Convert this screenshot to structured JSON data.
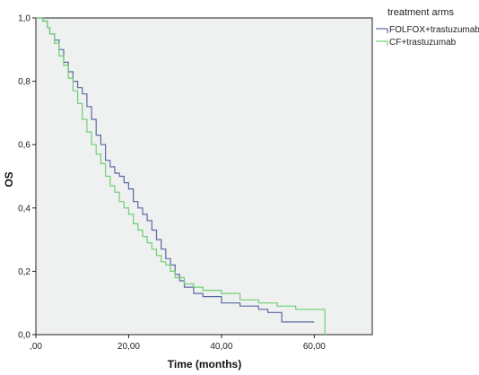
{
  "chart_data": {
    "type": "line",
    "step": true,
    "xlabel": "Time (months)",
    "ylabel": "OS",
    "xlim": [
      0,
      72.5
    ],
    "ylim": [
      0,
      1.0
    ],
    "x_ticks": [
      0,
      20,
      40,
      60
    ],
    "x_tick_labels": [
      ",00",
      "20,00",
      "40,00",
      "60,00"
    ],
    "y_ticks": [
      0,
      0.2,
      0.4,
      0.6,
      0.8,
      1.0
    ],
    "y_tick_labels": [
      "0,0",
      "0,2",
      "0,4",
      "0,6",
      "0,8",
      "1,0"
    ],
    "grid": false,
    "legend": {
      "title": "treatment arms",
      "placement": "outside-top-right"
    },
    "series": [
      {
        "name": "FOLFOX+trastuzumab",
        "color": "#5a6aa0",
        "x": [
          0,
          1.5,
          2.5,
          3,
          4,
          5,
          6,
          7,
          8,
          9,
          10,
          11,
          12,
          13,
          14,
          15,
          16,
          17,
          18,
          19,
          20,
          21,
          22,
          23,
          24,
          25,
          26,
          27,
          28,
          29,
          30,
          31,
          32,
          34,
          36,
          40,
          44,
          48,
          50,
          53,
          55,
          58,
          60
        ],
        "y": [
          1.0,
          0.99,
          0.97,
          0.95,
          0.93,
          0.9,
          0.86,
          0.83,
          0.8,
          0.78,
          0.76,
          0.72,
          0.68,
          0.63,
          0.6,
          0.55,
          0.53,
          0.51,
          0.5,
          0.48,
          0.46,
          0.42,
          0.4,
          0.38,
          0.36,
          0.33,
          0.3,
          0.27,
          0.24,
          0.22,
          0.19,
          0.17,
          0.15,
          0.13,
          0.12,
          0.1,
          0.09,
          0.08,
          0.07,
          0.04,
          0.04,
          0.04,
          0.04
        ]
      },
      {
        "name": "CF+trastuzumab",
        "color": "#6fcf73",
        "x": [
          0,
          1.5,
          2.5,
          3,
          4,
          5,
          6,
          7,
          8,
          9,
          10,
          11,
          12,
          13,
          14,
          15,
          16,
          17,
          18,
          19,
          20,
          21,
          22,
          23,
          24,
          25,
          26,
          27,
          28,
          29,
          30,
          32,
          34,
          36,
          38,
          40,
          44,
          48,
          52,
          56,
          60,
          62,
          62.3
        ],
        "y": [
          1.0,
          0.99,
          0.97,
          0.95,
          0.92,
          0.88,
          0.85,
          0.81,
          0.77,
          0.73,
          0.68,
          0.64,
          0.6,
          0.57,
          0.54,
          0.5,
          0.47,
          0.45,
          0.42,
          0.4,
          0.38,
          0.35,
          0.33,
          0.31,
          0.29,
          0.27,
          0.25,
          0.23,
          0.22,
          0.2,
          0.18,
          0.16,
          0.15,
          0.14,
          0.14,
          0.13,
          0.11,
          0.1,
          0.09,
          0.08,
          0.08,
          0.08,
          0.0
        ]
      }
    ]
  }
}
